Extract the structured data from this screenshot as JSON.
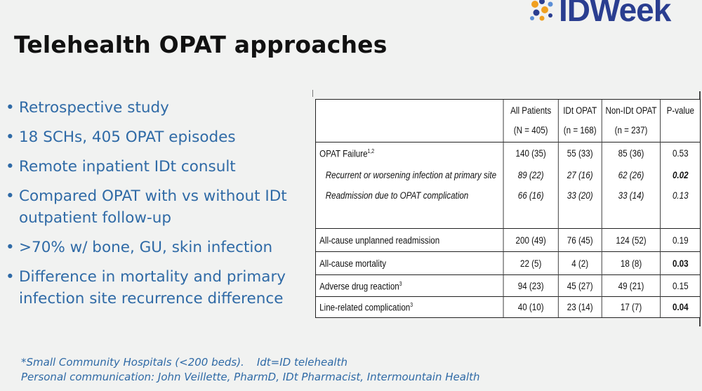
{
  "slide": {
    "title": "Telehealth OPAT approaches",
    "logo_text": "IDWeek",
    "colors": {
      "bullet": "#2f6aa6",
      "logo": "#2a3e90",
      "background": "#f1f2f1"
    }
  },
  "bullets": [
    "Retrospective study",
    "18 SCHs, 405 OPAT episodes",
    "Remote inpatient IDt consult",
    "Compared OPAT with vs without IDt outpatient follow-up",
    ">70% w/ bone, GU, skin infection",
    "Difference in mortality and primary infection site recurrence difference"
  ],
  "table": {
    "headers": [
      {
        "line1": "",
        "line2": ""
      },
      {
        "line1": "All Patients",
        "line2": "(N = 405)"
      },
      {
        "line1": "IDt OPAT",
        "line2": "(n = 168)"
      },
      {
        "line1": "Non-IDt OPAT",
        "line2": "(n = 237)"
      },
      {
        "line1": "P-value",
        "line2": ""
      }
    ],
    "rows": [
      {
        "label": "OPAT Failure",
        "sup": "1,2",
        "all": "140 (35)",
        "idt": "55 (33)",
        "non": "85 (36)",
        "p": "0.53"
      },
      {
        "label": "Recurrent or worsening infection at primary site",
        "all": "89 (22)",
        "idt": "27 (16)",
        "non": "62 (26)",
        "p": "0.02"
      },
      {
        "label": "Readmission due to OPAT complication",
        "all": "66 (16)",
        "idt": "33 (20)",
        "non": "33 (14)",
        "p": "0.13"
      },
      {
        "label": "All-cause unplanned readmission",
        "all": "200 (49)",
        "idt": "76 (45)",
        "non": "124 (52)",
        "p": "0.19"
      },
      {
        "label": "All-cause mortality",
        "all": "22 (5)",
        "idt": "4 (2)",
        "non": "18 (8)",
        "p": "0.03"
      },
      {
        "label": "Adverse drug reaction",
        "sup": "3",
        "all": "94 (23)",
        "idt": "45 (27)",
        "non": "49 (21)",
        "p": "0.15"
      },
      {
        "label": "Line-related complication",
        "sup": "3",
        "all": "40 (10)",
        "idt": "23 (14)",
        "non": "17 (7)",
        "p": "0.04"
      }
    ]
  },
  "footnotes": {
    "line1_a": "*Small Community Hospitals (<200 beds).",
    "line1_b": "Idt=ID telehealth",
    "line2": "Personal communication: John Veillette, PharmD, IDt Pharmacist, Intermountain Health"
  }
}
